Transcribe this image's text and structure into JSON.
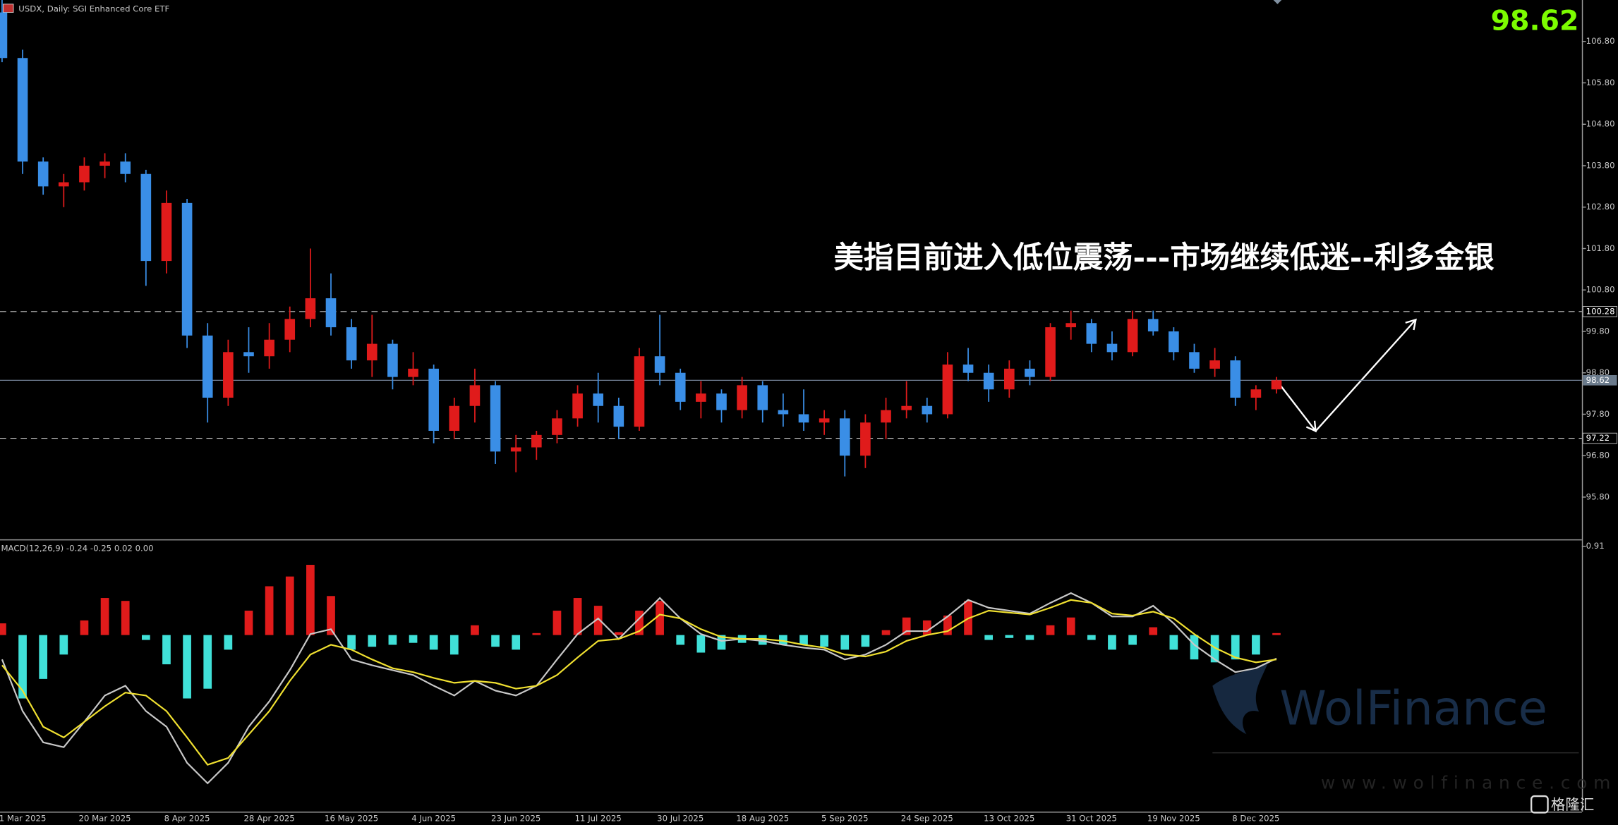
{
  "chart_data": [
    {
      "type": "candlestick",
      "title": "USDX, Daily:  SGI Enhanced Core ETF",
      "annotation": "美指目前进入低位震荡---市场继续低迷--利多金银",
      "categories": [
        null,
        "1 Mar 2025",
        null,
        null,
        null,
        "20 Mar 2025",
        null,
        null,
        null,
        "8 Apr 2025",
        null,
        null,
        null,
        "28 Apr 2025",
        null,
        null,
        null,
        "16 May 2025",
        null,
        null,
        null,
        "4 Jun 2025",
        null,
        null,
        null,
        "23 Jun 2025",
        null,
        null,
        null,
        "11 Jul 2025",
        null,
        null,
        null,
        "30 Jul 2025",
        null,
        null,
        null,
        "18 Aug 2025",
        null,
        null,
        null,
        "5 Sep 2025",
        null,
        null,
        null,
        "24 Sep 2025",
        null,
        null,
        null,
        "13 Oct 2025",
        null,
        null,
        null,
        "31 Oct 2025",
        null,
        null,
        null,
        "19 Nov 2025",
        null,
        null,
        null,
        "8 Dec 2025",
        null
      ],
      "open": [
        107.5,
        106.4,
        103.9,
        103.3,
        103.4,
        103.8,
        103.9,
        103.6,
        101.5,
        102.9,
        99.7,
        98.2,
        99.3,
        99.2,
        99.6,
        100.1,
        100.6,
        99.9,
        99.1,
        99.5,
        98.7,
        98.9,
        97.4,
        98.0,
        98.5,
        96.9,
        97.0,
        97.3,
        97.7,
        98.3,
        98.0,
        97.5,
        99.2,
        98.8,
        98.1,
        98.3,
        97.9,
        98.5,
        97.9,
        97.8,
        97.6,
        97.7,
        96.8,
        97.6,
        97.9,
        98.0,
        97.8,
        99.0,
        98.8,
        98.4,
        98.9,
        98.7,
        99.9,
        100.0,
        99.5,
        99.3,
        100.1,
        99.8,
        99.3,
        98.9,
        99.1,
        98.2,
        98.4
      ],
      "high": [
        107.8,
        106.6,
        104.0,
        103.6,
        104.0,
        104.1,
        104.1,
        103.7,
        103.2,
        103.0,
        100.0,
        99.6,
        99.9,
        100.0,
        100.4,
        101.8,
        101.2,
        100.1,
        100.2,
        99.6,
        99.3,
        99.0,
        98.2,
        98.9,
        98.6,
        97.3,
        97.4,
        97.9,
        98.5,
        98.8,
        98.2,
        99.4,
        100.2,
        98.9,
        98.6,
        98.4,
        98.7,
        98.6,
        98.3,
        98.4,
        97.9,
        97.9,
        97.8,
        98.2,
        98.6,
        98.2,
        99.3,
        99.4,
        99.0,
        99.1,
        99.1,
        100.0,
        100.3,
        100.1,
        99.8,
        100.3,
        100.3,
        99.9,
        99.5,
        99.4,
        99.2,
        98.5,
        98.7
      ],
      "low": [
        106.3,
        103.6,
        103.1,
        102.8,
        103.2,
        103.5,
        103.4,
        100.9,
        101.2,
        99.4,
        97.6,
        98.0,
        98.8,
        98.9,
        99.3,
        99.9,
        99.7,
        98.9,
        98.7,
        98.4,
        98.5,
        97.1,
        97.2,
        97.6,
        96.6,
        96.4,
        96.7,
        97.1,
        97.5,
        97.6,
        97.2,
        97.4,
        98.5,
        97.9,
        97.7,
        97.6,
        97.7,
        97.6,
        97.5,
        97.4,
        97.3,
        96.3,
        96.5,
        97.2,
        97.7,
        97.6,
        97.7,
        98.6,
        98.1,
        98.2,
        98.5,
        98.6,
        99.6,
        99.3,
        99.1,
        99.2,
        99.7,
        99.1,
        98.8,
        98.7,
        98.0,
        97.9,
        98.3
      ],
      "close": [
        106.4,
        103.9,
        103.3,
        103.4,
        103.8,
        103.9,
        103.6,
        101.5,
        102.9,
        99.7,
        98.2,
        99.3,
        99.2,
        99.6,
        100.1,
        100.6,
        99.9,
        99.1,
        99.5,
        98.7,
        98.9,
        97.4,
        98.0,
        98.5,
        96.9,
        97.0,
        97.3,
        97.7,
        98.3,
        98.0,
        97.5,
        99.2,
        98.8,
        98.1,
        98.3,
        97.9,
        98.5,
        97.9,
        97.8,
        97.6,
        97.7,
        96.8,
        97.6,
        97.9,
        98.0,
        97.8,
        99.0,
        98.8,
        98.4,
        98.9,
        98.7,
        99.9,
        100.0,
        99.5,
        99.3,
        100.1,
        99.8,
        99.3,
        98.9,
        99.1,
        98.2,
        98.4,
        98.62
      ],
      "up_color": "#e01b1b",
      "down_color": "#3a8ee6",
      "ylim": [
        94.78,
        107.8
      ],
      "yticks": [
        {
          "value": 106.8,
          "label": "106.80"
        },
        {
          "value": 105.8,
          "label": "105.80"
        },
        {
          "value": 104.8,
          "label": "104.80"
        },
        {
          "value": 103.8,
          "label": "103.80"
        },
        {
          "value": 102.8,
          "label": "102.80"
        },
        {
          "value": 101.8,
          "label": "101.80"
        },
        {
          "value": 100.8,
          "label": "100.80"
        },
        {
          "value": 99.8,
          "label": "99.80"
        },
        {
          "value": 98.8,
          "label": "98.80"
        },
        {
          "value": 97.8,
          "label": "97.80"
        },
        {
          "value": 96.8,
          "label": "96.80"
        },
        {
          "value": 95.8,
          "label": "95.80"
        }
      ],
      "levels": [
        100.28,
        97.22
      ],
      "last_price": 98.62,
      "grid": false
    },
    {
      "type": "macd",
      "title": "MACD(12,26,9) -0.24 -0.25 0.02 0.00",
      "histogram": {
        "up_color": "#e01b1b",
        "down_color": "#40e0d8",
        "values": [
          0.12,
          -0.65,
          -0.45,
          -0.2,
          0.15,
          0.38,
          0.35,
          -0.05,
          -0.3,
          -0.65,
          -0.55,
          -0.15,
          0.25,
          0.5,
          0.6,
          0.72,
          0.4,
          -0.15,
          -0.12,
          -0.1,
          -0.08,
          -0.15,
          -0.2,
          0.1,
          -0.12,
          -0.15,
          0.02,
          0.25,
          0.38,
          0.3,
          0.03,
          0.25,
          0.35,
          -0.1,
          -0.18,
          -0.15,
          -0.08,
          -0.1,
          -0.1,
          -0.1,
          -0.12,
          -0.15,
          -0.12,
          0.05,
          0.18,
          0.15,
          0.2,
          0.35,
          -0.05,
          -0.03,
          -0.05,
          0.1,
          0.18,
          -0.05,
          -0.15,
          -0.1,
          0.08,
          -0.15,
          -0.25,
          -0.28,
          -0.25,
          -0.2,
          0.02
        ]
      },
      "series": [
        {
          "color": "#c8c8c8",
          "values": [
            -0.25,
            -0.78,
            -1.1,
            -1.15,
            -0.89,
            -0.62,
            -0.52,
            -0.78,
            -0.94,
            -1.31,
            -1.52,
            -1.31,
            -0.94,
            -0.68,
            -0.36,
            0.01,
            0.06,
            -0.25,
            -0.31,
            -0.36,
            -0.41,
            -0.52,
            -0.62,
            -0.47,
            -0.57,
            -0.62,
            -0.52,
            -0.25,
            0.01,
            0.17,
            -0.04,
            0.17,
            0.38,
            0.17,
            0.01,
            -0.06,
            -0.04,
            -0.06,
            -0.1,
            -0.13,
            -0.15,
            -0.25,
            -0.2,
            -0.1,
            0.04,
            0.04,
            0.19,
            0.36,
            0.28,
            0.25,
            0.22,
            0.33,
            0.43,
            0.33,
            0.19,
            0.19,
            0.3,
            0.12,
            -0.1,
            -0.25,
            -0.38,
            -0.34,
            -0.24
          ]
        },
        {
          "color": "#f0e030",
          "values": [
            -0.31,
            -0.57,
            -0.94,
            -1.05,
            -0.89,
            -0.73,
            -0.59,
            -0.62,
            -0.78,
            -1.05,
            -1.33,
            -1.26,
            -1.02,
            -0.78,
            -0.47,
            -0.2,
            -0.1,
            -0.15,
            -0.25,
            -0.34,
            -0.38,
            -0.44,
            -0.49,
            -0.47,
            -0.49,
            -0.55,
            -0.52,
            -0.41,
            -0.23,
            -0.06,
            -0.04,
            0.04,
            0.21,
            0.17,
            0.06,
            -0.02,
            -0.04,
            -0.04,
            -0.06,
            -0.1,
            -0.13,
            -0.2,
            -0.22,
            -0.17,
            -0.06,
            0,
            0.04,
            0.17,
            0.25,
            0.23,
            0.21,
            0.28,
            0.36,
            0.33,
            0.22,
            0.2,
            0.24,
            0.17,
            0.01,
            -0.13,
            -0.23,
            -0.28,
            -0.25
          ]
        }
      ],
      "ylim": [
        -1.81,
        0.96
      ],
      "yticks": [
        0.91
      ]
    }
  ],
  "watermark": {
    "brand": "WolFinance",
    "url": "www.wolfinance.com"
  },
  "logo": {
    "text": "格隆汇"
  }
}
